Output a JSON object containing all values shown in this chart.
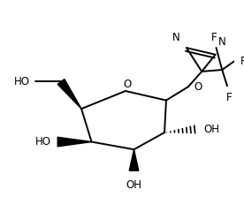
{
  "bg_color": "#ffffff",
  "line_color": "#000000",
  "label_color": "#000000",
  "font_size": 8.5,
  "fig_width": 2.76,
  "fig_height": 2.23,
  "dpi": 100,
  "xlim": [
    0,
    276
  ],
  "ylim": [
    0,
    223
  ]
}
